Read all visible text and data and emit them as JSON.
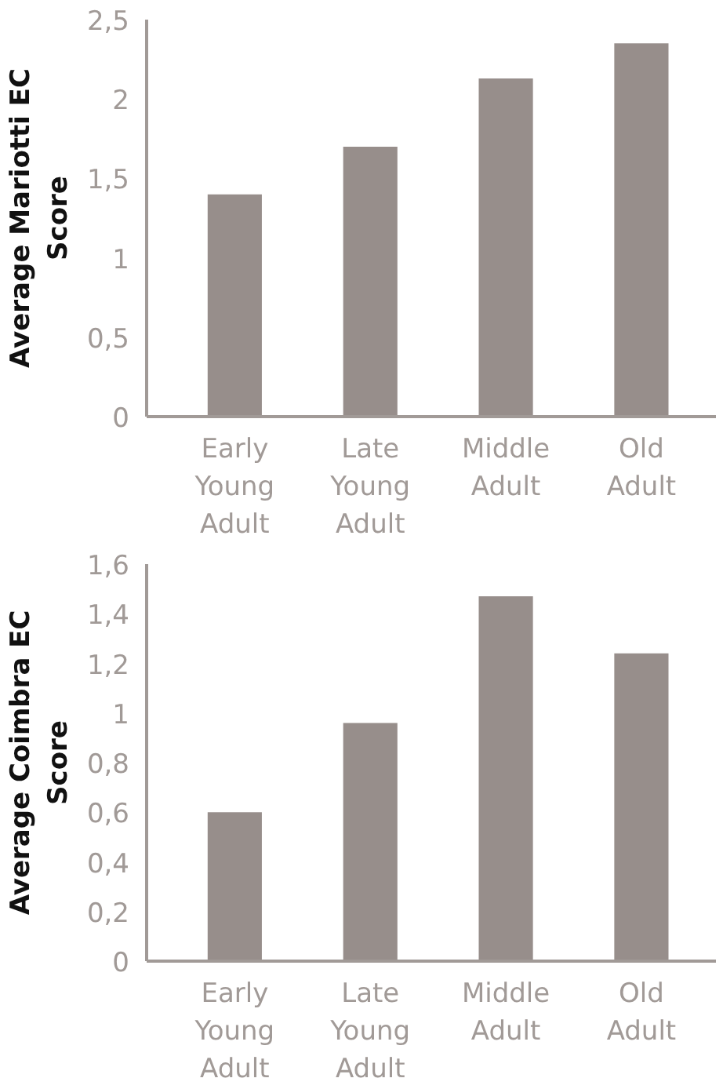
{
  "chart_data": [
    {
      "type": "bar",
      "ylabel": "Average Mariotti EC Score",
      "categories": [
        "Early Young Adult",
        "Late Young Adult",
        "Middle Adult",
        "Old Adult"
      ],
      "values": [
        1.4,
        1.7,
        2.13,
        2.35
      ],
      "color": "#978e8b",
      "ylim": [
        0,
        2.5
      ],
      "yticks": [
        0,
        {
          "value": 0.5,
          "label": "0,5"
        },
        1,
        {
          "value": 1.5,
          "label": "1,5"
        },
        2,
        {
          "value": 2.5,
          "label": "2,5"
        }
      ],
      "grid": false
    },
    {
      "type": "bar",
      "ylabel": "Average Coimbra EC Score",
      "categories": [
        "Early Young Adult",
        "Late Young Adult",
        "Middle Adult",
        "Old Adult"
      ],
      "values": [
        0.6,
        0.96,
        1.47,
        1.24
      ],
      "color": "#978e8b",
      "ylim": [
        0,
        1.6
      ],
      "yticks": [
        0,
        {
          "value": 0.2,
          "label": "0,2"
        },
        {
          "value": 0.4,
          "label": "0,4"
        },
        {
          "value": 0.6,
          "label": "0,6"
        },
        {
          "value": 0.8,
          "label": "0,8"
        },
        1,
        {
          "value": 1.2,
          "label": "1,2"
        },
        {
          "value": 1.4,
          "label": "1,4"
        },
        {
          "value": 1.6,
          "label": "1,6"
        }
      ],
      "grid": false
    }
  ]
}
